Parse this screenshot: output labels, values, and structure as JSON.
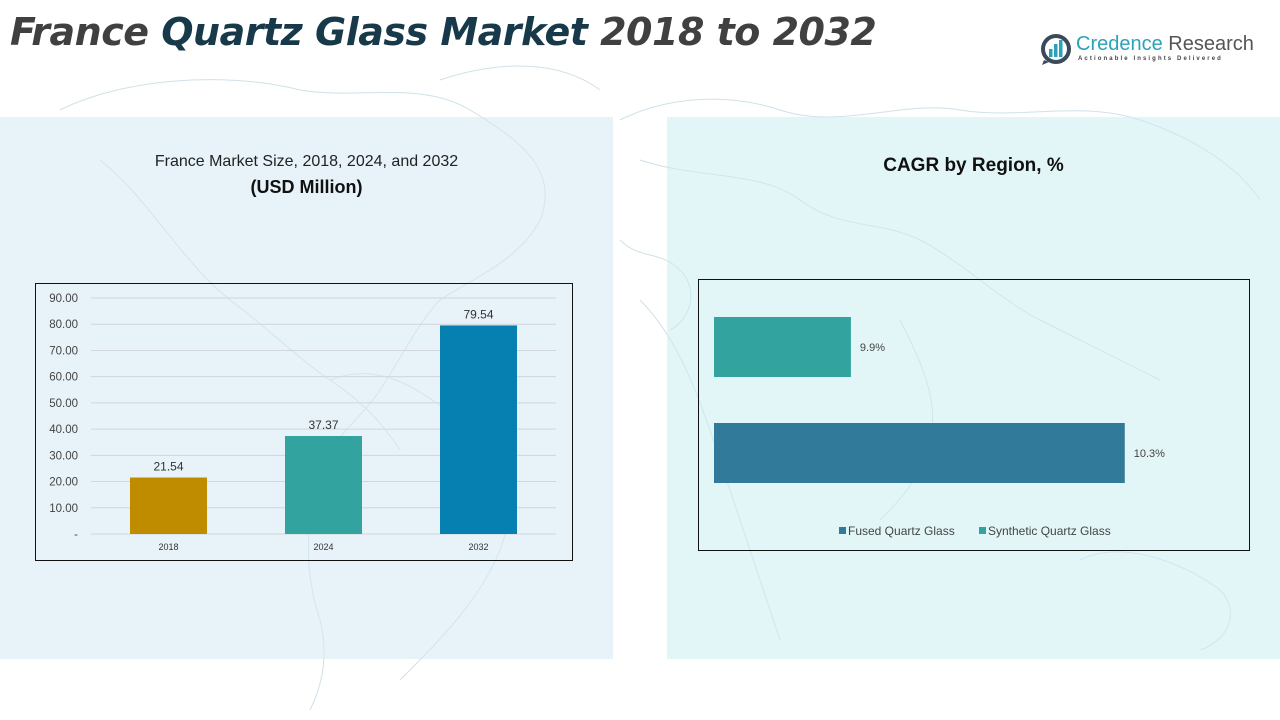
{
  "header": {
    "title_part1": "France ",
    "title_accent": "Quartz Glass Market",
    "title_part2": " 2018 to 2032"
  },
  "logo": {
    "name_part1": "Credence",
    "name_part2": " Research",
    "tagline": "Actionable Insights Delivered"
  },
  "left_panel": {
    "subtitle": "France Market Size, 2018, 2024, and 2032",
    "unit": "(USD Million)"
  },
  "right_panel": {
    "title": "CAGR by Region, %"
  },
  "chart_data": [
    {
      "type": "bar",
      "title": "France Market Size, 2018, 2024, and 2032 (USD Million)",
      "categories": [
        "2018",
        "2024",
        "2032"
      ],
      "values": [
        21.54,
        37.37,
        79.54
      ],
      "value_labels": [
        "21.54",
        "37.37",
        "79.54"
      ],
      "colors": [
        "#bf8c00",
        "#33a3a0",
        "#0680b0"
      ],
      "ylim": [
        0,
        90
      ],
      "yticks": [
        0,
        10,
        20,
        30,
        40,
        50,
        60,
        70,
        80,
        90
      ],
      "ytick_labels": [
        "-",
        "10.00",
        "20.00",
        "30.00",
        "40.00",
        "50.00",
        "60.00",
        "70.00",
        "80.00",
        "90.00"
      ],
      "grid": true,
      "xlabel": "",
      "ylabel": ""
    },
    {
      "type": "bar",
      "orientation": "horizontal",
      "title": "CAGR by Region, %",
      "categories": [
        "Synthetic Quartz Glass",
        "Fused Quartz Glass"
      ],
      "values": [
        9.9,
        10.3
      ],
      "value_labels": [
        "9.9%",
        "10.3%"
      ],
      "colors": [
        "#33a3a0",
        "#317a99"
      ],
      "xlim": [
        9.7,
        10.35
      ],
      "legend": {
        "placement": "bottom",
        "entries": [
          {
            "label": "Fused Quartz Glass",
            "color": "#317a99"
          },
          {
            "label": "Synthetic Quartz Glass",
            "color": "#33a3a0"
          }
        ]
      }
    }
  ]
}
